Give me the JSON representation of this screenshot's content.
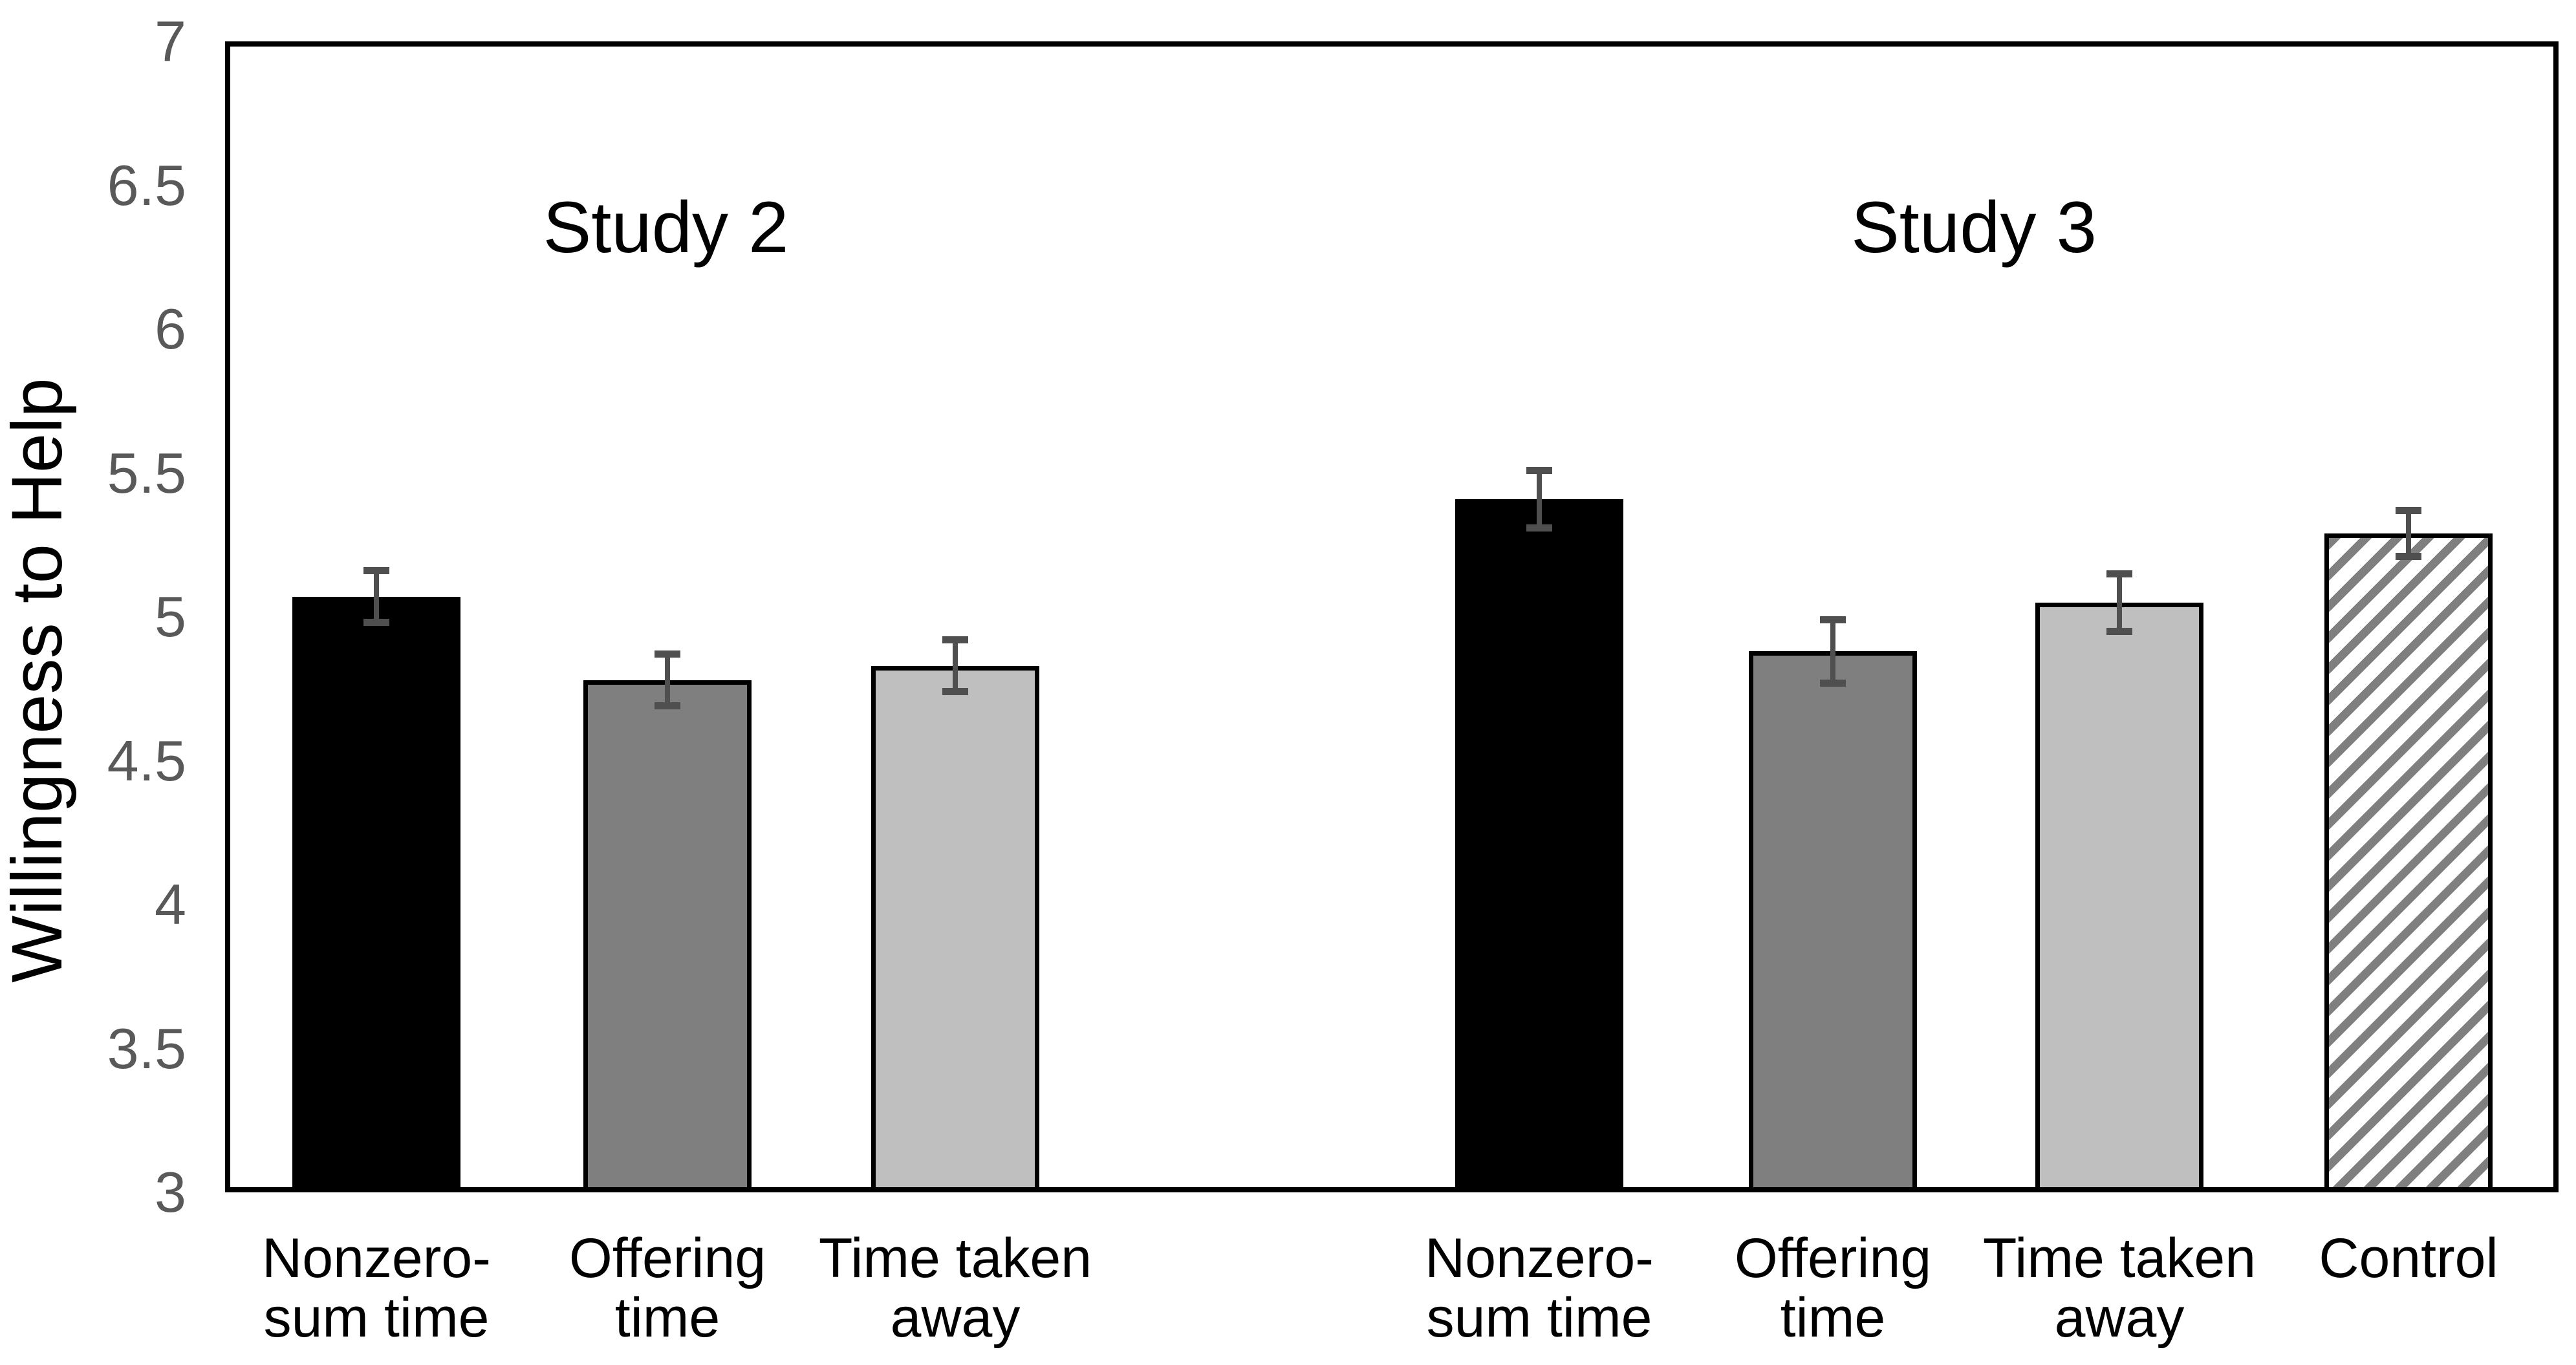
{
  "chart_data": {
    "type": "bar",
    "title": "",
    "ylabel": "Willingness to Help",
    "xlabel": "",
    "ylim": [
      3,
      7
    ],
    "ytick_step": 0.5,
    "yticks": [
      7,
      6.5,
      6,
      5.5,
      5,
      4.5,
      4,
      3.5,
      3
    ],
    "ytick_labels": [
      "7",
      "6.5",
      "6",
      "5.5",
      "5",
      "4.5",
      "4",
      "3.5",
      "3"
    ],
    "grid": false,
    "legend": "none",
    "error_bars": "plus-minus, with caps",
    "groups": [
      {
        "title": "Study 2",
        "bars": [
          {
            "label": "Nonzero-sum time",
            "label_lines": [
              "Nonzero-",
              "sum time"
            ],
            "value": 5.07,
            "error": 0.09,
            "fill": "black"
          },
          {
            "label": "Offering time",
            "label_lines": [
              "Offering",
              "time"
            ],
            "value": 4.78,
            "error": 0.09,
            "fill": "dark-gray"
          },
          {
            "label": "Time taken away",
            "label_lines": [
              "Time taken",
              "away"
            ],
            "value": 4.83,
            "error": 0.09,
            "fill": "light-gray"
          }
        ]
      },
      {
        "title": "Study 3",
        "bars": [
          {
            "label": "Nonzero-sum time",
            "label_lines": [
              "Nonzero-",
              "sum time"
            ],
            "value": 5.41,
            "error": 0.1,
            "fill": "black"
          },
          {
            "label": "Offering time",
            "label_lines": [
              "Offering",
              "time"
            ],
            "value": 4.88,
            "error": 0.11,
            "fill": "dark-gray"
          },
          {
            "label": "Time taken away",
            "label_lines": [
              "Time taken",
              "away"
            ],
            "value": 5.05,
            "error": 0.1,
            "fill": "light-gray"
          },
          {
            "label": "Control",
            "label_lines": [
              "Control"
            ],
            "value": 5.29,
            "error": 0.08,
            "fill": "hatched-diagonal"
          }
        ]
      }
    ],
    "colors": {
      "background": "#ffffff",
      "frame": "#000000",
      "bar_black": "#000000",
      "bar_dark_gray": "#7f7f7f",
      "bar_light_gray": "#bfbfbf",
      "bar_outline": "#000000",
      "hatch_stripe": "#7f7f7f",
      "hatch_background": "#ffffff",
      "error_bar": "#4f4f4f",
      "tick_label": "#595959",
      "text": "#000000"
    }
  }
}
